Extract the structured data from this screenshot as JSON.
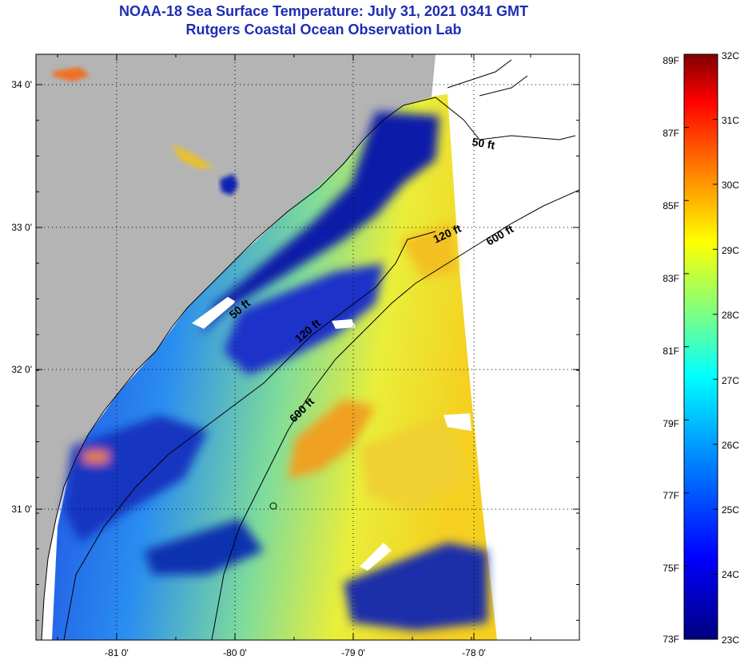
{
  "title": "NOAA-18 Sea Surface Temperature:  July 31, 2021 0341 GMT",
  "subtitle": "Rutgers Coastal Ocean Observation Lab",
  "map": {
    "lat_labels": [
      "34 0'",
      "33 0'",
      "32 0'",
      "31 0'"
    ],
    "lon_labels": [
      "-81 0'",
      "-80 0'",
      "-79 0'",
      "-78 0'"
    ],
    "isobaths": [
      "50 ft",
      "120 ft",
      "600 ft",
      "50 ft",
      "120 ft",
      "600 ft"
    ],
    "land_color": "#b4b4b4",
    "no_data_color": "#ffffff"
  },
  "colorbar": {
    "fahrenheit_labels": [
      "89F",
      "87F",
      "85F",
      "83F",
      "81F",
      "79F",
      "77F",
      "75F",
      "73F"
    ],
    "celsius_labels": [
      "32C",
      "31C",
      "30C",
      "29C",
      "28C",
      "27C",
      "26C",
      "25C",
      "24C",
      "23C"
    ],
    "colors": [
      "#000080",
      "#0000ff",
      "#0080ff",
      "#00ffff",
      "#80ff80",
      "#ffff00",
      "#ff8000",
      "#ff0000",
      "#800000"
    ]
  }
}
